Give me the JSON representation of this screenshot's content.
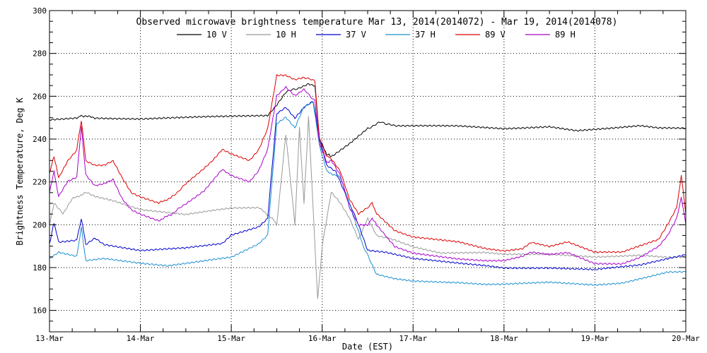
{
  "chart_data": {
    "type": "line",
    "title": "Observed microwave brightness temperature Mar 13, 2014(2014072) - Mar 19, 2014(2014078)",
    "xlabel": "Date (EST)",
    "ylabel": "Brightness Temperature, Deg K",
    "ylim": [
      150,
      300
    ],
    "xlim": [
      0,
      7
    ],
    "yticks": [
      160,
      180,
      200,
      220,
      240,
      260,
      280,
      300
    ],
    "xticks": [
      {
        "x": 0,
        "label": "13-Mar"
      },
      {
        "x": 1,
        "label": "14-Mar"
      },
      {
        "x": 2,
        "label": "15-Mar"
      },
      {
        "x": 3,
        "label": "16-Mar"
      },
      {
        "x": 4,
        "label": "17-Mar"
      },
      {
        "x": 5,
        "label": "18-Mar"
      },
      {
        "x": 6,
        "label": "19-Mar"
      },
      {
        "x": 7,
        "label": "20-Mar"
      }
    ],
    "grid": true,
    "legend_position": "top",
    "series": [
      {
        "name": "10 V",
        "color": "#000000",
        "points": [
          [
            0,
            249
          ],
          [
            0.3,
            250
          ],
          [
            0.35,
            251
          ],
          [
            0.5,
            250
          ],
          [
            1,
            249.5
          ],
          [
            1.5,
            250
          ],
          [
            2,
            250.5
          ],
          [
            2.4,
            251
          ],
          [
            2.5,
            256
          ],
          [
            2.6,
            262
          ],
          [
            2.75,
            264
          ],
          [
            2.85,
            266
          ],
          [
            2.92,
            265
          ],
          [
            2.97,
            240
          ],
          [
            3.05,
            233
          ],
          [
            3.1,
            232
          ],
          [
            3.3,
            238
          ],
          [
            3.5,
            245
          ],
          [
            3.65,
            248
          ],
          [
            3.8,
            246
          ],
          [
            4.5,
            246
          ],
          [
            5,
            245
          ],
          [
            5.5,
            246
          ],
          [
            5.8,
            244
          ],
          [
            6.2,
            245
          ],
          [
            6.5,
            246
          ],
          [
            6.7,
            245
          ],
          [
            7,
            245
          ]
        ]
      },
      {
        "name": "10 H",
        "color": "#999999",
        "points": [
          [
            0,
            200
          ],
          [
            0.05,
            210
          ],
          [
            0.15,
            205
          ],
          [
            0.25,
            212
          ],
          [
            0.4,
            215
          ],
          [
            0.5,
            213
          ],
          [
            0.7,
            211
          ],
          [
            1,
            207
          ],
          [
            1.5,
            205
          ],
          [
            1.8,
            207
          ],
          [
            2,
            208
          ],
          [
            2.3,
            208
          ],
          [
            2.45,
            203
          ],
          [
            2.5,
            200
          ],
          [
            2.6,
            242
          ],
          [
            2.7,
            200
          ],
          [
            2.75,
            245
          ],
          [
            2.8,
            210
          ],
          [
            2.85,
            250
          ],
          [
            2.95,
            165
          ],
          [
            3.0,
            190
          ],
          [
            3.1,
            215
          ],
          [
            3.2,
            210
          ],
          [
            3.3,
            203
          ],
          [
            3.4,
            193
          ],
          [
            3.5,
            203
          ],
          [
            3.6,
            195
          ],
          [
            3.8,
            193
          ],
          [
            4,
            190
          ],
          [
            4.3,
            187
          ],
          [
            4.8,
            187
          ],
          [
            5,
            186
          ],
          [
            5.5,
            186
          ],
          [
            6,
            185
          ],
          [
            6.5,
            186
          ],
          [
            6.8,
            185
          ],
          [
            7,
            185
          ]
        ]
      },
      {
        "name": "37 V",
        "color": "#0000cc",
        "points": [
          [
            0,
            191
          ],
          [
            0.05,
            201
          ],
          [
            0.1,
            192
          ],
          [
            0.3,
            193
          ],
          [
            0.35,
            203
          ],
          [
            0.4,
            191
          ],
          [
            0.5,
            194
          ],
          [
            0.6,
            191
          ],
          [
            1,
            188
          ],
          [
            1.5,
            189
          ],
          [
            1.9,
            191
          ],
          [
            2,
            195
          ],
          [
            2.3,
            199
          ],
          [
            2.4,
            203
          ],
          [
            2.5,
            252
          ],
          [
            2.6,
            255
          ],
          [
            2.7,
            250
          ],
          [
            2.8,
            255
          ],
          [
            2.9,
            258
          ],
          [
            2.97,
            240
          ],
          [
            3.05,
            228
          ],
          [
            3.15,
            225
          ],
          [
            3.25,
            215
          ],
          [
            3.4,
            200
          ],
          [
            3.5,
            188
          ],
          [
            3.7,
            187
          ],
          [
            4,
            184
          ],
          [
            4.5,
            182
          ],
          [
            4.8,
            181
          ],
          [
            5,
            180
          ],
          [
            5.5,
            180
          ],
          [
            6,
            179
          ],
          [
            6.5,
            181
          ],
          [
            6.8,
            184
          ],
          [
            7,
            186
          ]
        ]
      },
      {
        "name": "37 H",
        "color": "#1a90d0",
        "points": [
          [
            0,
            184
          ],
          [
            0.1,
            187
          ],
          [
            0.3,
            185
          ],
          [
            0.35,
            199
          ],
          [
            0.4,
            183
          ],
          [
            0.6,
            184
          ],
          [
            1,
            182
          ],
          [
            1.3,
            181
          ],
          [
            1.8,
            184
          ],
          [
            2,
            185
          ],
          [
            2.3,
            191
          ],
          [
            2.4,
            195
          ],
          [
            2.5,
            247
          ],
          [
            2.6,
            250
          ],
          [
            2.7,
            245
          ],
          [
            2.8,
            255
          ],
          [
            2.9,
            257
          ],
          [
            2.97,
            237
          ],
          [
            3.05,
            225
          ],
          [
            3.2,
            222
          ],
          [
            3.3,
            210
          ],
          [
            3.45,
            190
          ],
          [
            3.6,
            177
          ],
          [
            3.8,
            175
          ],
          [
            4,
            174
          ],
          [
            4.5,
            173
          ],
          [
            4.8,
            172
          ],
          [
            5,
            172
          ],
          [
            5.5,
            173
          ],
          [
            6,
            172
          ],
          [
            6.3,
            173
          ],
          [
            6.5,
            175
          ],
          [
            6.8,
            178
          ],
          [
            7,
            178
          ]
        ]
      },
      {
        "name": "89 V",
        "color": "#dd0000",
        "points": [
          [
            0,
            224
          ],
          [
            0.05,
            232
          ],
          [
            0.1,
            222
          ],
          [
            0.2,
            230
          ],
          [
            0.3,
            235
          ],
          [
            0.35,
            249
          ],
          [
            0.4,
            230
          ],
          [
            0.5,
            228
          ],
          [
            0.6,
            228
          ],
          [
            0.7,
            230
          ],
          [
            0.8,
            222
          ],
          [
            0.9,
            215
          ],
          [
            1,
            213
          ],
          [
            1.2,
            210
          ],
          [
            1.35,
            213
          ],
          [
            1.5,
            219
          ],
          [
            1.7,
            226
          ],
          [
            1.8,
            230
          ],
          [
            1.9,
            235
          ],
          [
            2,
            233
          ],
          [
            2.2,
            230
          ],
          [
            2.3,
            235
          ],
          [
            2.4,
            245
          ],
          [
            2.5,
            270
          ],
          [
            2.6,
            270
          ],
          [
            2.7,
            268
          ],
          [
            2.8,
            269
          ],
          [
            2.92,
            267
          ],
          [
            2.97,
            240
          ],
          [
            3.05,
            232
          ],
          [
            3.1,
            231
          ],
          [
            3.2,
            225
          ],
          [
            3.3,
            212
          ],
          [
            3.4,
            205
          ],
          [
            3.5,
            208
          ],
          [
            3.55,
            210
          ],
          [
            3.6,
            205
          ],
          [
            3.8,
            197
          ],
          [
            4,
            194
          ],
          [
            4.5,
            192
          ],
          [
            4.8,
            189
          ],
          [
            5,
            188
          ],
          [
            5.2,
            189
          ],
          [
            5.3,
            192
          ],
          [
            5.5,
            190
          ],
          [
            5.7,
            192
          ],
          [
            6,
            187
          ],
          [
            6.3,
            187
          ],
          [
            6.5,
            190
          ],
          [
            6.7,
            193
          ],
          [
            6.8,
            200
          ],
          [
            6.9,
            208
          ],
          [
            6.95,
            223
          ],
          [
            7,
            205
          ]
        ]
      },
      {
        "name": "89 H",
        "color": "#aa00cc",
        "points": [
          [
            0,
            215
          ],
          [
            0.05,
            225
          ],
          [
            0.1,
            213
          ],
          [
            0.2,
            220
          ],
          [
            0.3,
            222
          ],
          [
            0.35,
            246
          ],
          [
            0.4,
            223
          ],
          [
            0.5,
            218
          ],
          [
            0.6,
            219
          ],
          [
            0.7,
            221
          ],
          [
            0.8,
            212
          ],
          [
            0.9,
            207
          ],
          [
            1,
            205
          ],
          [
            1.2,
            202
          ],
          [
            1.35,
            205
          ],
          [
            1.5,
            210
          ],
          [
            1.7,
            216
          ],
          [
            1.8,
            221
          ],
          [
            1.9,
            226
          ],
          [
            2,
            223
          ],
          [
            2.2,
            220
          ],
          [
            2.3,
            225
          ],
          [
            2.4,
            235
          ],
          [
            2.5,
            260
          ],
          [
            2.6,
            264
          ],
          [
            2.7,
            260
          ],
          [
            2.8,
            263
          ],
          [
            2.92,
            258
          ],
          [
            2.97,
            238
          ],
          [
            3.05,
            229
          ],
          [
            3.1,
            230
          ],
          [
            3.2,
            223
          ],
          [
            3.3,
            208
          ],
          [
            3.4,
            200
          ],
          [
            3.5,
            200
          ],
          [
            3.55,
            203
          ],
          [
            3.6,
            200
          ],
          [
            3.8,
            190
          ],
          [
            4,
            187
          ],
          [
            4.5,
            184
          ],
          [
            4.8,
            183
          ],
          [
            5,
            183
          ],
          [
            5.2,
            185
          ],
          [
            5.3,
            187
          ],
          [
            5.5,
            186
          ],
          [
            5.7,
            187
          ],
          [
            6,
            182
          ],
          [
            6.3,
            182
          ],
          [
            6.5,
            185
          ],
          [
            6.7,
            190
          ],
          [
            6.8,
            195
          ],
          [
            6.9,
            203
          ],
          [
            6.95,
            213
          ],
          [
            7,
            200
          ]
        ]
      }
    ]
  }
}
